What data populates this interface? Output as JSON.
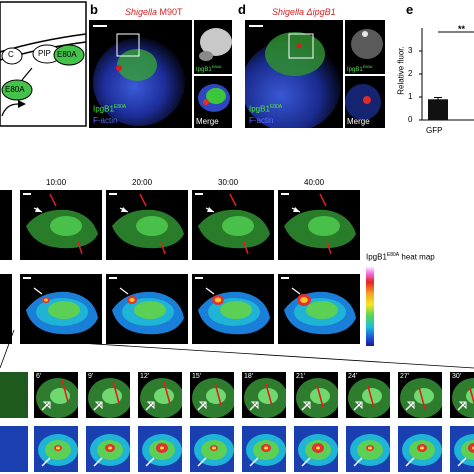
{
  "panels": {
    "b": {
      "letter": "b",
      "title_italic": "Shigella",
      "title_rest": " M90T",
      "protein": "IpgB1",
      "sup": "E80A",
      "factin": "F-actin",
      "merge": "Merge"
    },
    "d": {
      "letter": "d",
      "title_italic": "Shigella",
      "title_rest": " ΔipgB1",
      "protein": "IpgB1",
      "sup": "E80A",
      "factin": "F-actin",
      "merge": "Merge"
    },
    "e": {
      "letter": "e",
      "ylabel": "Relative fluor.",
      "xtick": "GFP",
      "yticks": [
        "0",
        "1",
        "2",
        "3"
      ],
      "signif": "**"
    },
    "schematic": {
      "node_c": "C",
      "node_pip": "PIP",
      "node_e80a_1": "E80A",
      "node_e80a_2": "E80A"
    }
  },
  "timelapse": {
    "times": [
      "10:00",
      "20:00",
      "30:00",
      "40:00"
    ],
    "heatmap_label": "IpgB1",
    "heatmap_sup": "E80A",
    "heatmap_rest": " heat map"
  },
  "strip": {
    "times": [
      "6'",
      "9'",
      "12'",
      "15'",
      "18'",
      "21'",
      "24'",
      "27'",
      "30'"
    ]
  },
  "chart_data": {
    "type": "bar",
    "categories": [
      "GFP"
    ],
    "values": [
      0.9
    ],
    "errors": [
      0.08
    ],
    "ylabel": "Relative fluor.",
    "ylim": [
      0,
      4
    ],
    "annotations": [
      "**"
    ]
  }
}
